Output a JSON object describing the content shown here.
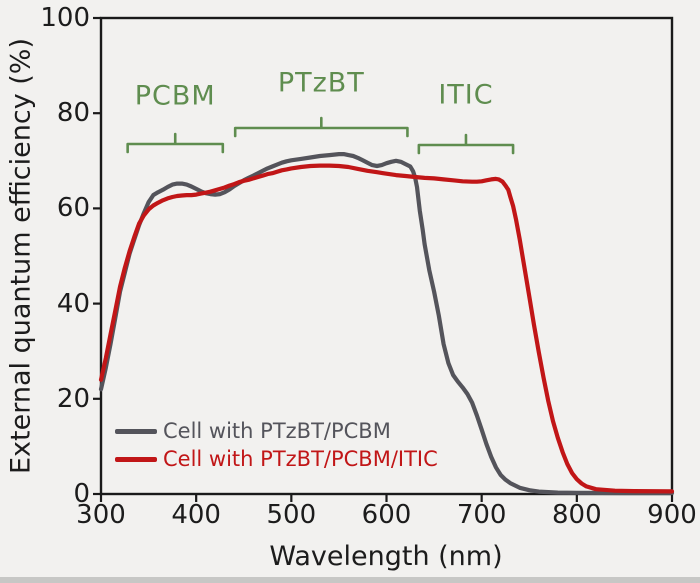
{
  "figure": {
    "background": "#f2f1ef",
    "frame_color": "#1a1a1a"
  },
  "axes": {
    "xlabel": "Wavelength (nm)",
    "ylabel": "External quantum efficiency (%)"
  },
  "legend": {
    "items": [
      {
        "label": "Cell with PTzBT/PCBM",
        "color": "#54545b"
      },
      {
        "label": "Cell with PTzBT/PCBM/ITIC",
        "color": "#c11617"
      }
    ]
  },
  "chart_data": {
    "type": "line",
    "title": "",
    "xlabel": "Wavelength (nm)",
    "ylabel": "External quantum efficiency (%)",
    "xlim": [
      300,
      900
    ],
    "ylim": [
      0,
      100
    ],
    "x_ticks": [
      300,
      400,
      500,
      600,
      700,
      800,
      900
    ],
    "y_ticks": [
      0,
      20,
      40,
      60,
      80,
      100
    ],
    "grid": false,
    "legend_position": "lower left",
    "annotation_color": "#5f8d4f",
    "annotations": [
      {
        "label": "PCBM",
        "range_nm": [
          328,
          428
        ],
        "bracket_y": 144,
        "label_y": 96
      },
      {
        "label": "PTzBT",
        "range_nm": [
          441,
          622
        ],
        "bracket_y": 128,
        "label_y": 83
      },
      {
        "label": "ITIC",
        "range_nm": [
          634,
          733
        ],
        "bracket_y": 145,
        "label_y": 95
      }
    ],
    "series": [
      {
        "name": "Cell with PTzBT/PCBM",
        "color": "#54545b",
        "points": [
          [
            300,
            22
          ],
          [
            305,
            26.5
          ],
          [
            310,
            31.5
          ],
          [
            315,
            37
          ],
          [
            320,
            42.5
          ],
          [
            325,
            46.5
          ],
          [
            330,
            50.5
          ],
          [
            335,
            53.5
          ],
          [
            340,
            56.5
          ],
          [
            345,
            59
          ],
          [
            350,
            61.3
          ],
          [
            355,
            62.8
          ],
          [
            360,
            63.4
          ],
          [
            365,
            63.9
          ],
          [
            370,
            64.5
          ],
          [
            375,
            65
          ],
          [
            380,
            65.2
          ],
          [
            385,
            65.2
          ],
          [
            390,
            65
          ],
          [
            395,
            64.6
          ],
          [
            400,
            64.1
          ],
          [
            405,
            63.6
          ],
          [
            410,
            63.2
          ],
          [
            415,
            63
          ],
          [
            420,
            62.9
          ],
          [
            425,
            63
          ],
          [
            430,
            63.4
          ],
          [
            435,
            64
          ],
          [
            440,
            64.7
          ],
          [
            445,
            65.3
          ],
          [
            450,
            65.9
          ],
          [
            455,
            66.4
          ],
          [
            460,
            66.9
          ],
          [
            465,
            67.4
          ],
          [
            470,
            67.9
          ],
          [
            475,
            68.4
          ],
          [
            480,
            68.8
          ],
          [
            485,
            69.2
          ],
          [
            490,
            69.6
          ],
          [
            495,
            69.9
          ],
          [
            500,
            70.1
          ],
          [
            510,
            70.4
          ],
          [
            520,
            70.7
          ],
          [
            530,
            71
          ],
          [
            540,
            71.2
          ],
          [
            550,
            71.4
          ],
          [
            555,
            71.4
          ],
          [
            560,
            71.2
          ],
          [
            565,
            71
          ],
          [
            570,
            70.6
          ],
          [
            575,
            70.1
          ],
          [
            580,
            69.6
          ],
          [
            585,
            69.1
          ],
          [
            590,
            68.9
          ],
          [
            595,
            69.1
          ],
          [
            600,
            69.5
          ],
          [
            605,
            69.8
          ],
          [
            610,
            70
          ],
          [
            615,
            69.8
          ],
          [
            620,
            69.3
          ],
          [
            625,
            68.8
          ],
          [
            628,
            67.8
          ],
          [
            630,
            66.5
          ],
          [
            632,
            64.5
          ],
          [
            635,
            59.5
          ],
          [
            638,
            55.5
          ],
          [
            640,
            52.5
          ],
          [
            645,
            47
          ],
          [
            650,
            42.5
          ],
          [
            655,
            37.5
          ],
          [
            660,
            31.5
          ],
          [
            665,
            27.5
          ],
          [
            670,
            25
          ],
          [
            675,
            23.6
          ],
          [
            680,
            22.4
          ],
          [
            685,
            21
          ],
          [
            690,
            19.2
          ],
          [
            695,
            16.5
          ],
          [
            700,
            13.5
          ],
          [
            705,
            10.5
          ],
          [
            710,
            7.8
          ],
          [
            715,
            5.6
          ],
          [
            720,
            4
          ],
          [
            725,
            3
          ],
          [
            730,
            2.3
          ],
          [
            740,
            1.3
          ],
          [
            750,
            0.8
          ],
          [
            760,
            0.5
          ],
          [
            780,
            0.3
          ],
          [
            800,
            0.25
          ],
          [
            850,
            0.2
          ],
          [
            900,
            0.2
          ]
        ]
      },
      {
        "name": "Cell with PTzBT/PCBM/ITIC",
        "color": "#c11617",
        "points": [
          [
            300,
            24
          ],
          [
            305,
            28.5
          ],
          [
            310,
            33.5
          ],
          [
            315,
            38.5
          ],
          [
            320,
            43.5
          ],
          [
            325,
            47.5
          ],
          [
            330,
            51
          ],
          [
            335,
            54
          ],
          [
            340,
            56.8
          ],
          [
            345,
            58.5
          ],
          [
            350,
            59.8
          ],
          [
            355,
            60.6
          ],
          [
            360,
            61.2
          ],
          [
            365,
            61.7
          ],
          [
            370,
            62.1
          ],
          [
            375,
            62.4
          ],
          [
            380,
            62.6
          ],
          [
            385,
            62.7
          ],
          [
            390,
            62.8
          ],
          [
            395,
            62.8
          ],
          [
            400,
            62.9
          ],
          [
            405,
            63.1
          ],
          [
            410,
            63.3
          ],
          [
            415,
            63.5
          ],
          [
            420,
            63.8
          ],
          [
            425,
            64.1
          ],
          [
            430,
            64.4
          ],
          [
            435,
            64.8
          ],
          [
            440,
            65.1
          ],
          [
            445,
            65.5
          ],
          [
            450,
            65.8
          ],
          [
            455,
            66
          ],
          [
            460,
            66.3
          ],
          [
            465,
            66.6
          ],
          [
            470,
            66.9
          ],
          [
            475,
            67.2
          ],
          [
            480,
            67.4
          ],
          [
            485,
            67.7
          ],
          [
            490,
            68
          ],
          [
            495,
            68.2
          ],
          [
            500,
            68.4
          ],
          [
            510,
            68.7
          ],
          [
            520,
            68.9
          ],
          [
            530,
            69
          ],
          [
            540,
            69
          ],
          [
            550,
            68.9
          ],
          [
            560,
            68.7
          ],
          [
            570,
            68.3
          ],
          [
            580,
            67.9
          ],
          [
            590,
            67.6
          ],
          [
            600,
            67.3
          ],
          [
            610,
            67
          ],
          [
            620,
            66.8
          ],
          [
            630,
            66.6
          ],
          [
            640,
            66.4
          ],
          [
            650,
            66.3
          ],
          [
            660,
            66.1
          ],
          [
            670,
            65.9
          ],
          [
            680,
            65.7
          ],
          [
            690,
            65.6
          ],
          [
            695,
            65.6
          ],
          [
            700,
            65.7
          ],
          [
            705,
            65.9
          ],
          [
            710,
            66.1
          ],
          [
            715,
            66.2
          ],
          [
            718,
            66.1
          ],
          [
            722,
            65.6
          ],
          [
            725,
            64.8
          ],
          [
            728,
            63.9
          ],
          [
            730,
            62.5
          ],
          [
            733,
            60.5
          ],
          [
            736,
            57.8
          ],
          [
            740,
            53.5
          ],
          [
            745,
            47.5
          ],
          [
            750,
            41.5
          ],
          [
            755,
            35.5
          ],
          [
            760,
            29.8
          ],
          [
            765,
            24.5
          ],
          [
            770,
            19.5
          ],
          [
            775,
            15.3
          ],
          [
            780,
            11.8
          ],
          [
            785,
            8.8
          ],
          [
            790,
            6.3
          ],
          [
            795,
            4.4
          ],
          [
            800,
            3.1
          ],
          [
            805,
            2.2
          ],
          [
            810,
            1.6
          ],
          [
            820,
            1
          ],
          [
            840,
            0.7
          ],
          [
            860,
            0.6
          ],
          [
            900,
            0.55
          ]
        ]
      }
    ]
  }
}
